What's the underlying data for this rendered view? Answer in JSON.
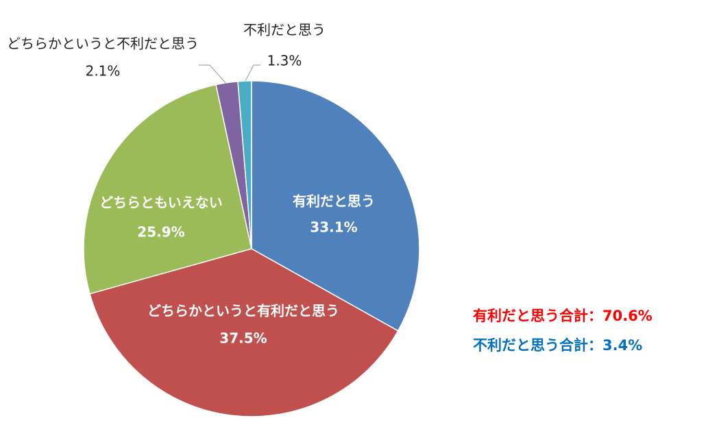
{
  "chart_data": {
    "type": "pie",
    "categories": [
      "有利だと思う",
      "どちらかというと有利だと思う",
      "どちらともいえない",
      "どちらかというと不利だと思う",
      "不利だと思う"
    ],
    "values": [
      33.1,
      37.5,
      25.9,
      2.1,
      1.3
    ],
    "value_labels": [
      "33.1%",
      "37.5%",
      "25.9%",
      "2.1%",
      "1.3%"
    ],
    "colors": [
      "#4f81bd",
      "#c0504d",
      "#9bbb59",
      "#8064a2",
      "#4bacc6"
    ],
    "annotations": [
      {
        "text": "有利だと思う合計：70.6%",
        "color": "#ff0000"
      },
      {
        "text": "不利だと思う合計：3.4%",
        "color": "#0070c0"
      }
    ]
  }
}
